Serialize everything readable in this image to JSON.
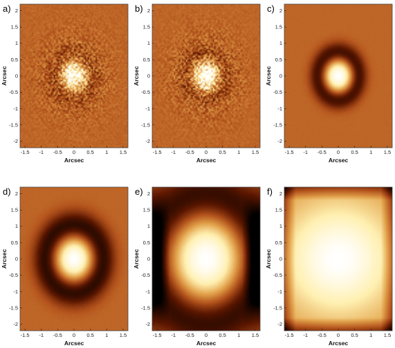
{
  "figure": {
    "x_axis_label": "Arcsec",
    "y_axis_label": "Arcsec",
    "x_ticks": [
      "-1.5",
      "-1",
      "-0.5",
      "0",
      "0.5",
      "1",
      "1.5"
    ],
    "y_ticks": [
      "2",
      "1.5",
      "1",
      "0.5",
      "0",
      "-0.5",
      "-1",
      "-1.5",
      "-2"
    ],
    "colormap": [
      "#000000",
      "#5a1600",
      "#b2521c",
      "#e2a14a",
      "#fff0b0",
      "#ffffff"
    ],
    "background_color": "#c1622c",
    "panels": [
      {
        "letter": "a)",
        "core_radius": 0.28,
        "ring_radius": 0.55,
        "ring_depth": 0.25,
        "speckle": true
      },
      {
        "letter": "b)",
        "core_radius": 0.3,
        "ring_radius": 0.55,
        "ring_depth": 0.3,
        "speckle": true
      },
      {
        "letter": "c)",
        "core_radius": 0.35,
        "ring_radius": 0.6,
        "ring_depth": 0.9,
        "speckle": false
      },
      {
        "letter": "d)",
        "core_radius": 0.45,
        "ring_radius": 0.85,
        "ring_depth": 0.95,
        "speckle": false
      },
      {
        "letter": "e)",
        "core_radius": 0.9,
        "ring_radius": 1.6,
        "ring_depth": 0.95,
        "speckle": false
      },
      {
        "letter": "f)",
        "core_radius": 2.2,
        "ring_radius": 3.5,
        "ring_depth": 0.6,
        "speckle": false
      }
    ]
  }
}
